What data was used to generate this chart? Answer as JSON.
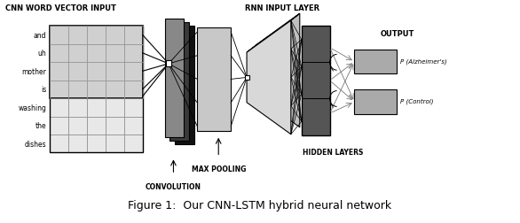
{
  "title": "Figure 1:  Our CNN-LSTM hybrid neural network",
  "labels": {
    "cnn_input": "CNN WORD VECTOR INPUT",
    "rnn_input": "RNN INPUT LAYER",
    "convolution": "CONVOLUTION",
    "max_pooling": "MAX POOLING",
    "hidden_layers": "HIDDEN LAYERS",
    "output": "OUTPUT",
    "p_alzheimer": "P (Alzheimer's)",
    "p_control": "P (Control)"
  },
  "words": [
    "and",
    "uh",
    "mother",
    "is",
    "washing",
    "the",
    "dishes"
  ],
  "grid_rows": 7,
  "grid_cols": 5,
  "colors": {
    "white": "#ffffff",
    "black": "#000000",
    "conv_black": "#111111",
    "conv_darkgray": "#3a3a3a",
    "conv_midgray": "#888888",
    "conv_lightgray": "#c0c0c0",
    "pool_gray": "#c8c8c8",
    "rnn_trapz_light": "#d0d0d0",
    "rnn_trapz_dark": "#606060",
    "hidden_dark1": "#555555",
    "hidden_dark2": "#666666",
    "hidden_dark3": "#777777",
    "hidden_box": "#555555",
    "output_box": "#999999",
    "output_box2": "#aaaaaa",
    "line_gray": "#888888",
    "grid_cell": "#e8e8e8"
  }
}
